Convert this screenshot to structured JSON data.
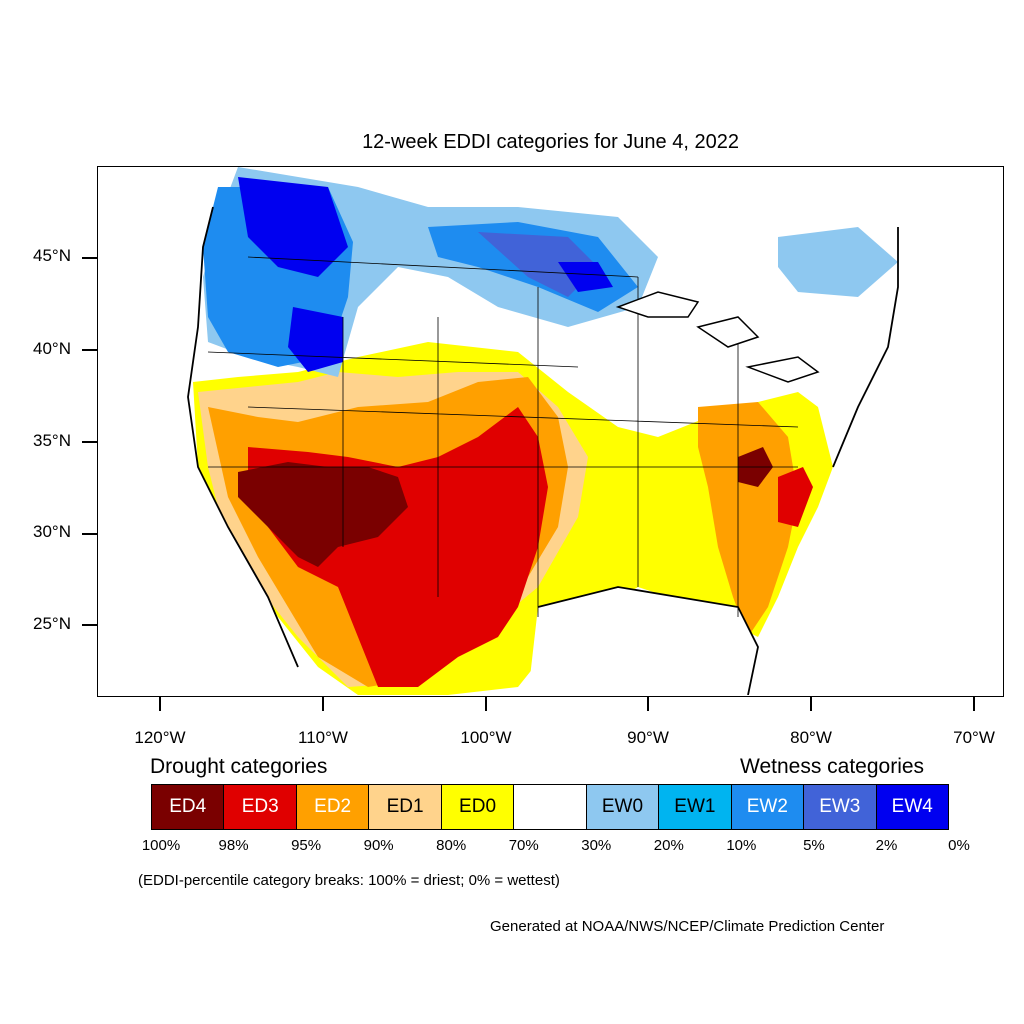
{
  "title": "12-week EDDI categories for June 4, 2022",
  "lat_labels": [
    "45°N",
    "40°N",
    "35°N",
    "30°N",
    "25°N"
  ],
  "lon_labels": [
    "120°W",
    "110°W",
    "100°W",
    "90°W",
    "80°W",
    "70°W"
  ],
  "drought_heading": "Drought categories",
  "wetness_heading": "Wetness categories",
  "legend": [
    {
      "label": "ED4",
      "color": "#7a0000",
      "text_color": "#ffffff"
    },
    {
      "label": "ED3",
      "color": "#e00000",
      "text_color": "#ffffff"
    },
    {
      "label": "ED2",
      "color": "#ffa000",
      "text_color": "#ffffff"
    },
    {
      "label": "ED1",
      "color": "#ffd38c",
      "text_color": "#000000"
    },
    {
      "label": "ED0",
      "color": "#ffff00",
      "text_color": "#000000"
    },
    {
      "label": "",
      "color": "#ffffff",
      "text_color": "#000000"
    },
    {
      "label": "EW0",
      "color": "#8ec8f0",
      "text_color": "#000000"
    },
    {
      "label": "EW1",
      "color": "#00b4f0",
      "text_color": "#000000"
    },
    {
      "label": "EW2",
      "color": "#1e8cf0",
      "text_color": "#ffffff"
    },
    {
      "label": "EW3",
      "color": "#4163d8",
      "text_color": "#ffffff"
    },
    {
      "label": "EW4",
      "color": "#0000f0",
      "text_color": "#ffffff"
    }
  ],
  "percentiles": [
    "100%",
    "98%",
    "95%",
    "90%",
    "80%",
    "70%",
    "30%",
    "20%",
    "10%",
    "5%",
    "2%",
    "0%"
  ],
  "note": "(EDDI-percentile category breaks: 100% = driest; 0% = wettest)",
  "credit": "Generated at NOAA/NWS/NCEP/Climate Prediction Center"
}
